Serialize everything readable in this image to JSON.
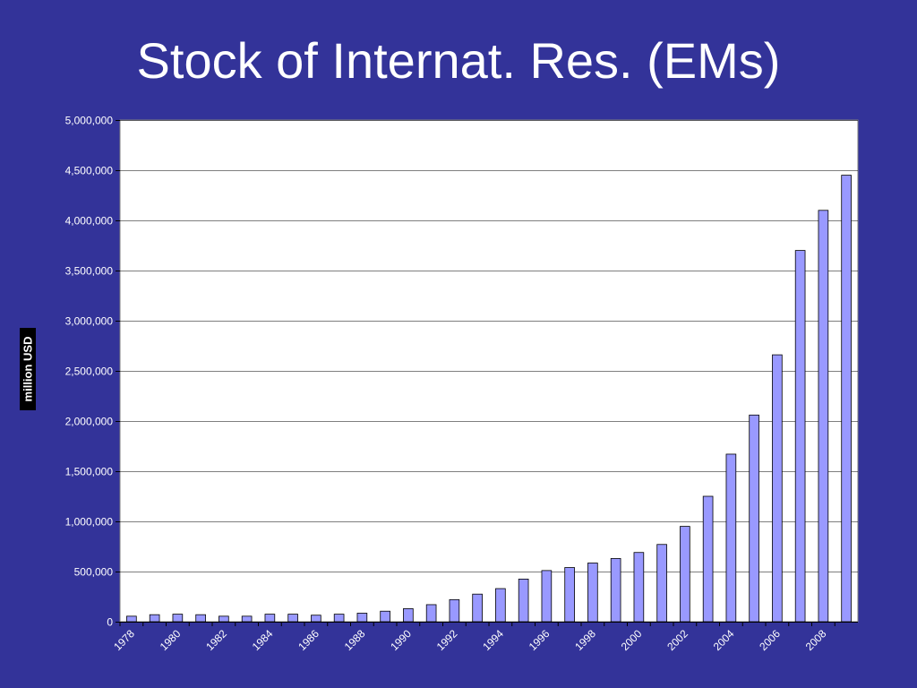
{
  "slide": {
    "title": "Stock of Internat. Res. (EMs)"
  },
  "colors": {
    "background": "#333399",
    "plot_area": "#ffffff",
    "bar_fill": "#9999ff",
    "bar_stroke": "#000000",
    "gridline": "#000000",
    "text": "#ffffff"
  },
  "chart_data": {
    "type": "bar",
    "title": "",
    "xlabel": "",
    "ylabel": "million USD",
    "ylim": [
      0,
      5000000
    ],
    "yticks": [
      0,
      500000,
      1000000,
      1500000,
      2000000,
      2500000,
      3000000,
      3500000,
      4000000,
      4500000,
      5000000
    ],
    "ytick_labels": [
      "0",
      "500,000",
      "1,000,000",
      "1,500,000",
      "2,000,000",
      "2,500,000",
      "3,000,000",
      "3,500,000",
      "4,000,000",
      "4,500,000",
      "5,000,000"
    ],
    "grid": true,
    "legend": "none",
    "categories": [
      "1978",
      "1979",
      "1980",
      "1981",
      "1982",
      "1983",
      "1984",
      "1985",
      "1986",
      "1987",
      "1988",
      "1989",
      "1990",
      "1991",
      "1992",
      "1993",
      "1994",
      "1995",
      "1996",
      "1997",
      "1998",
      "1999",
      "2000",
      "2001",
      "2002",
      "2003",
      "2004",
      "2005",
      "2006",
      "2007",
      "2008",
      "2009"
    ],
    "x_tick_labels": [
      "1978",
      "",
      "1980",
      "",
      "1982",
      "",
      "1984",
      "",
      "1986",
      "",
      "1988",
      "",
      "1990",
      "",
      "1992",
      "",
      "1994",
      "",
      "1996",
      "",
      "1998",
      "",
      "2000",
      "",
      "2002",
      "",
      "2004",
      "",
      "2006",
      "",
      "2008",
      ""
    ],
    "values": [
      55000,
      70000,
      75000,
      70000,
      55000,
      55000,
      75000,
      75000,
      65000,
      75000,
      85000,
      105000,
      130000,
      170000,
      220000,
      275000,
      330000,
      425000,
      510000,
      540000,
      585000,
      630000,
      690000,
      770000,
      950000,
      1250000,
      1670000,
      2060000,
      2660000,
      3700000,
      4100000,
      4450000
    ]
  }
}
